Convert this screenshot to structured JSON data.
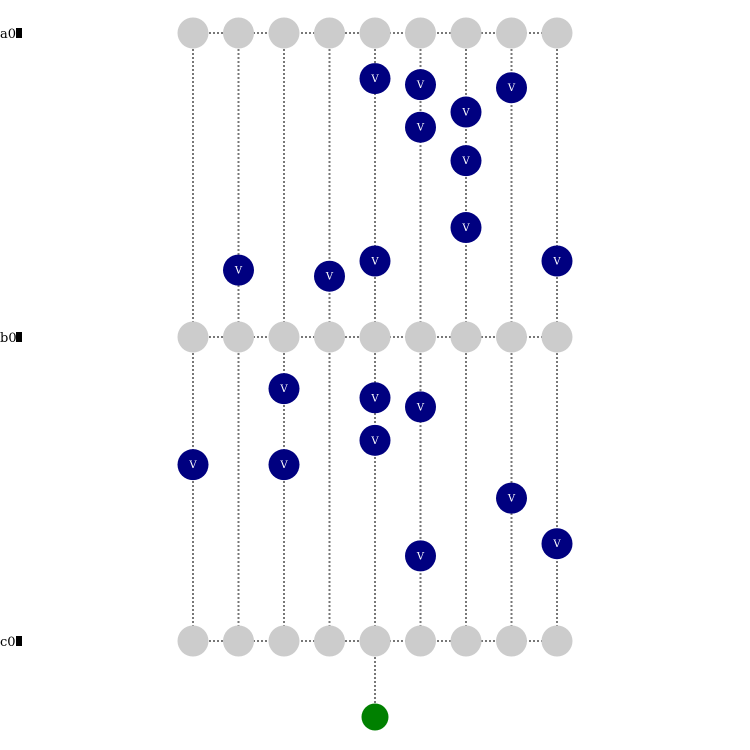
{
  "rows": [
    {
      "id": "a",
      "label": "a0"
    },
    {
      "id": "b",
      "label": "b0"
    },
    {
      "id": "c",
      "label": "c0"
    }
  ],
  "columns": 9,
  "colors": {
    "grid_node": "#cccccc",
    "marker": "#000080",
    "marker_text": "#ffffff",
    "terminal": "#008000",
    "line": "#777777"
  },
  "marker_label": "V",
  "markers_note_units": "column index (0-8), band (a-b or b-c), fraction down from upper row",
  "markers": [
    {
      "col": 4,
      "band": "ab",
      "t": 0.15
    },
    {
      "col": 5,
      "band": "ab",
      "t": 0.17
    },
    {
      "col": 7,
      "band": "ab",
      "t": 0.18
    },
    {
      "col": 6,
      "band": "ab",
      "t": 0.26
    },
    {
      "col": 5,
      "band": "ab",
      "t": 0.31
    },
    {
      "col": 6,
      "band": "ab",
      "t": 0.42
    },
    {
      "col": 6,
      "band": "ab",
      "t": 0.64
    },
    {
      "col": 4,
      "band": "ab",
      "t": 0.75
    },
    {
      "col": 8,
      "band": "ab",
      "t": 0.75
    },
    {
      "col": 1,
      "band": "ab",
      "t": 0.78
    },
    {
      "col": 3,
      "band": "ab",
      "t": 0.8
    },
    {
      "col": 2,
      "band": "bc",
      "t": 0.17
    },
    {
      "col": 4,
      "band": "bc",
      "t": 0.2
    },
    {
      "col": 5,
      "band": "bc",
      "t": 0.23
    },
    {
      "col": 4,
      "band": "bc",
      "t": 0.34
    },
    {
      "col": 0,
      "band": "bc",
      "t": 0.42
    },
    {
      "col": 2,
      "band": "bc",
      "t": 0.42
    },
    {
      "col": 7,
      "band": "bc",
      "t": 0.53
    },
    {
      "col": 8,
      "band": "bc",
      "t": 0.68
    },
    {
      "col": 5,
      "band": "bc",
      "t": 0.72
    }
  ],
  "terminal": {
    "col": 4
  }
}
